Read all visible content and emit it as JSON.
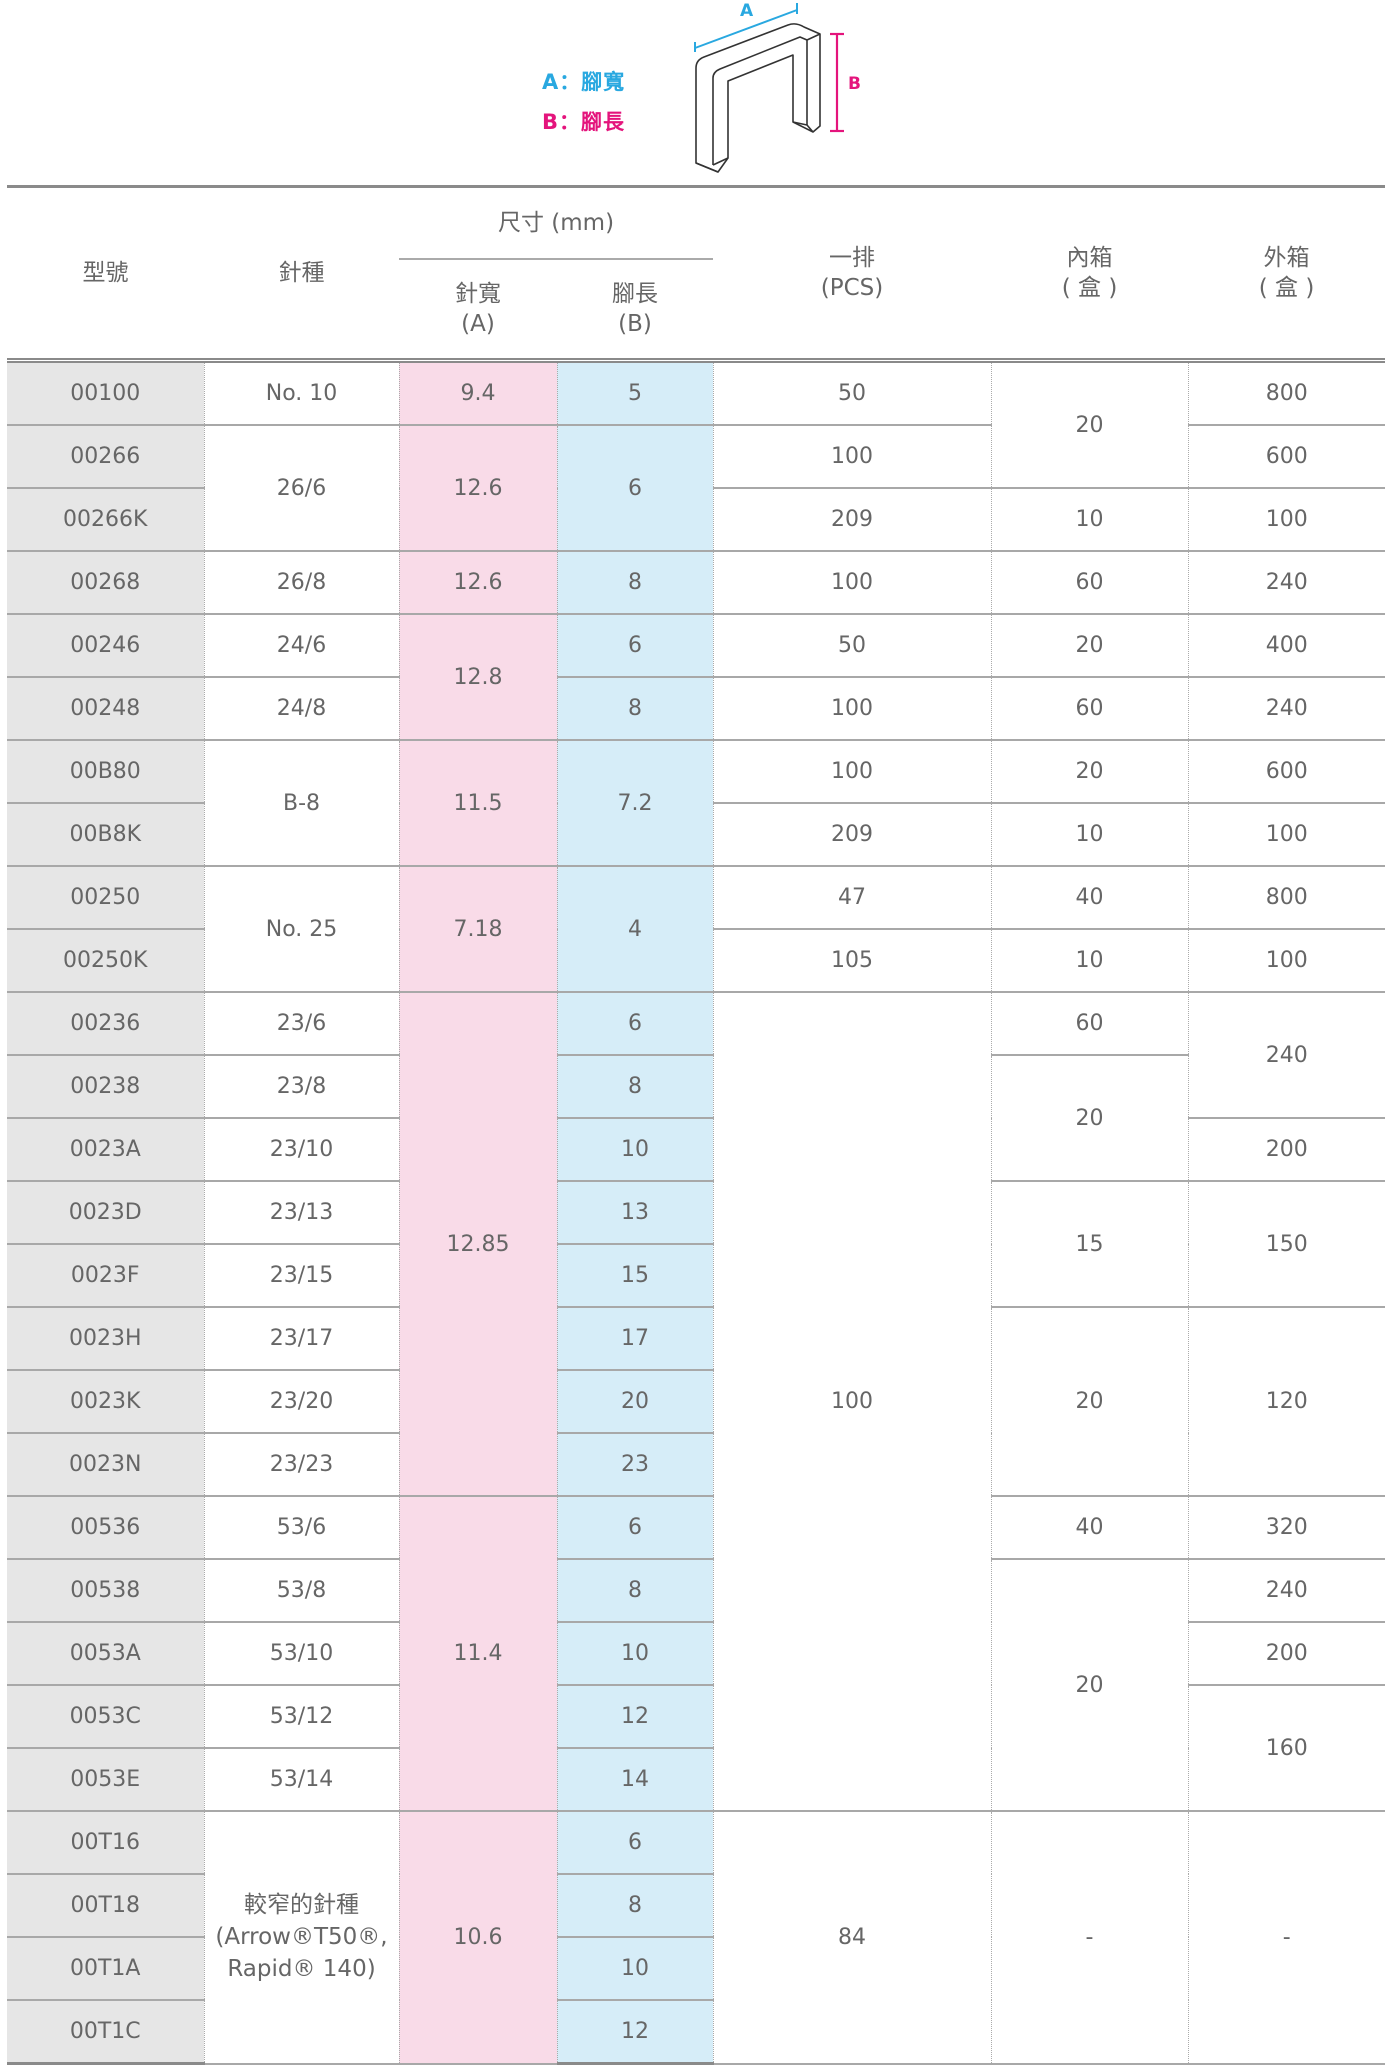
{
  "legend": {
    "a": "A：腳寬",
    "b": "B：腳長",
    "a_mark": "A",
    "b_mark": "B",
    "a_color": "#29a8e0",
    "b_color": "#e4147c"
  },
  "colors": {
    "width_column": "#f9dbe8",
    "leg_column": "#d6edf8",
    "model_column": "#e6e6e6"
  },
  "table": {
    "headers": {
      "model": "型號",
      "type": "針種",
      "size": "尺寸 (mm)",
      "width": "針寬",
      "width_unit": "(A)",
      "leg": "腳長",
      "leg_unit": "(B)",
      "row": "一排",
      "row_unit": "(PCS)",
      "inner": "內箱",
      "inner_unit": "( 盒 )",
      "outer": "外箱",
      "outer_unit": "( 盒 )"
    },
    "rows": [
      [
        {
          "c": "model",
          "v": "00100"
        },
        {
          "c": "type",
          "v": "No. 10"
        },
        {
          "c": "width",
          "v": "9.4"
        },
        {
          "c": "leg",
          "v": "5"
        },
        {
          "c": "pcs",
          "v": "50"
        },
        {
          "c": "inner",
          "v": "20",
          "s": 2
        },
        {
          "c": "outer",
          "v": "800"
        }
      ],
      [
        {
          "c": "model",
          "v": "00266"
        },
        {
          "c": "type",
          "v": "26/6",
          "s": 2
        },
        {
          "c": "width",
          "v": "12.6",
          "s": 2
        },
        {
          "c": "leg",
          "v": "6",
          "s": 2
        },
        {
          "c": "pcs",
          "v": "100"
        },
        {
          "c": "outer",
          "v": "600"
        }
      ],
      [
        {
          "c": "model",
          "v": "00266K"
        },
        {
          "c": "pcs",
          "v": "209"
        },
        {
          "c": "inner",
          "v": "10"
        },
        {
          "c": "outer",
          "v": "100"
        }
      ],
      [
        {
          "c": "model",
          "v": "00268"
        },
        {
          "c": "type",
          "v": "26/8"
        },
        {
          "c": "width",
          "v": "12.6"
        },
        {
          "c": "leg",
          "v": "8"
        },
        {
          "c": "pcs",
          "v": "100"
        },
        {
          "c": "inner",
          "v": "60"
        },
        {
          "c": "outer",
          "v": "240"
        }
      ],
      [
        {
          "c": "model",
          "v": "00246"
        },
        {
          "c": "type",
          "v": "24/6"
        },
        {
          "c": "width",
          "v": "12.8",
          "s": 2
        },
        {
          "c": "leg",
          "v": "6"
        },
        {
          "c": "pcs",
          "v": "50"
        },
        {
          "c": "inner",
          "v": "20"
        },
        {
          "c": "outer",
          "v": "400"
        }
      ],
      [
        {
          "c": "model",
          "v": "00248"
        },
        {
          "c": "type",
          "v": "24/8"
        },
        {
          "c": "leg",
          "v": "8"
        },
        {
          "c": "pcs",
          "v": "100"
        },
        {
          "c": "inner",
          "v": "60"
        },
        {
          "c": "outer",
          "v": "240"
        }
      ],
      [
        {
          "c": "model",
          "v": "00B80"
        },
        {
          "c": "type",
          "v": "B-8",
          "s": 2
        },
        {
          "c": "width",
          "v": "11.5",
          "s": 2
        },
        {
          "c": "leg",
          "v": "7.2",
          "s": 2
        },
        {
          "c": "pcs",
          "v": "100"
        },
        {
          "c": "inner",
          "v": "20"
        },
        {
          "c": "outer",
          "v": "600"
        }
      ],
      [
        {
          "c": "model",
          "v": "00B8K"
        },
        {
          "c": "pcs",
          "v": "209"
        },
        {
          "c": "inner",
          "v": "10"
        },
        {
          "c": "outer",
          "v": "100"
        }
      ],
      [
        {
          "c": "model",
          "v": "00250"
        },
        {
          "c": "type",
          "v": "No. 25",
          "s": 2
        },
        {
          "c": "width",
          "v": "7.18",
          "s": 2
        },
        {
          "c": "leg",
          "v": "4",
          "s": 2
        },
        {
          "c": "pcs",
          "v": "47"
        },
        {
          "c": "inner",
          "v": "40"
        },
        {
          "c": "outer",
          "v": "800"
        }
      ],
      [
        {
          "c": "model",
          "v": "00250K"
        },
        {
          "c": "pcs",
          "v": "105"
        },
        {
          "c": "inner",
          "v": "10"
        },
        {
          "c": "outer",
          "v": "100"
        }
      ],
      [
        {
          "c": "model",
          "v": "00236"
        },
        {
          "c": "type",
          "v": "23/6"
        },
        {
          "c": "width",
          "v": "12.85",
          "s": 8
        },
        {
          "c": "leg",
          "v": "6"
        },
        {
          "c": "pcs",
          "v": "100",
          "s": 13
        },
        {
          "c": "inner",
          "v": "60"
        },
        {
          "c": "outer",
          "v": "240",
          "s": 2
        }
      ],
      [
        {
          "c": "model",
          "v": "00238"
        },
        {
          "c": "type",
          "v": "23/8"
        },
        {
          "c": "leg",
          "v": "8"
        },
        {
          "c": "inner",
          "v": "20",
          "s": 2
        }
      ],
      [
        {
          "c": "model",
          "v": "0023A"
        },
        {
          "c": "type",
          "v": "23/10"
        },
        {
          "c": "leg",
          "v": "10"
        },
        {
          "c": "outer",
          "v": "200"
        }
      ],
      [
        {
          "c": "model",
          "v": "0023D"
        },
        {
          "c": "type",
          "v": "23/13"
        },
        {
          "c": "leg",
          "v": "13"
        },
        {
          "c": "inner",
          "v": "15",
          "s": 2
        },
        {
          "c": "outer",
          "v": "150",
          "s": 2
        }
      ],
      [
        {
          "c": "model",
          "v": "0023F"
        },
        {
          "c": "type",
          "v": "23/15"
        },
        {
          "c": "leg",
          "v": "15"
        }
      ],
      [
        {
          "c": "model",
          "v": "0023H"
        },
        {
          "c": "type",
          "v": "23/17"
        },
        {
          "c": "leg",
          "v": "17"
        },
        {
          "c": "inner",
          "v": "20",
          "s": 3
        },
        {
          "c": "outer",
          "v": "120",
          "s": 3
        }
      ],
      [
        {
          "c": "model",
          "v": "0023K"
        },
        {
          "c": "type",
          "v": "23/20"
        },
        {
          "c": "leg",
          "v": "20"
        }
      ],
      [
        {
          "c": "model",
          "v": "0023N"
        },
        {
          "c": "type",
          "v": "23/23"
        },
        {
          "c": "leg",
          "v": "23"
        }
      ],
      [
        {
          "c": "model",
          "v": "00536"
        },
        {
          "c": "type",
          "v": "53/6"
        },
        {
          "c": "width",
          "v": "11.4",
          "s": 5
        },
        {
          "c": "leg",
          "v": "6"
        },
        {
          "c": "inner",
          "v": "40"
        },
        {
          "c": "outer",
          "v": "320"
        }
      ],
      [
        {
          "c": "model",
          "v": "00538"
        },
        {
          "c": "type",
          "v": "53/8"
        },
        {
          "c": "leg",
          "v": "8"
        },
        {
          "c": "inner",
          "v": "20",
          "s": 4
        },
        {
          "c": "outer",
          "v": "240"
        }
      ],
      [
        {
          "c": "model",
          "v": "0053A"
        },
        {
          "c": "type",
          "v": "53/10"
        },
        {
          "c": "leg",
          "v": "10"
        },
        {
          "c": "outer",
          "v": "200"
        }
      ],
      [
        {
          "c": "model",
          "v": "0053C"
        },
        {
          "c": "type",
          "v": "53/12"
        },
        {
          "c": "leg",
          "v": "12"
        },
        {
          "c": "outer",
          "v": "160",
          "s": 2
        }
      ],
      [
        {
          "c": "model",
          "v": "0053E"
        },
        {
          "c": "type",
          "v": "53/14"
        },
        {
          "c": "leg",
          "v": "14"
        }
      ],
      [
        {
          "c": "model",
          "v": "00T16"
        },
        {
          "c": "type",
          "v": "較窄的針種\n(Arrow®T50®,\nRapid® 140)",
          "s": 4
        },
        {
          "c": "width",
          "v": "10.6",
          "s": 4
        },
        {
          "c": "leg",
          "v": "6"
        },
        {
          "c": "pcs",
          "v": "84",
          "s": 4
        },
        {
          "c": "inner",
          "v": "-",
          "s": 4
        },
        {
          "c": "outer",
          "v": "-",
          "s": 4
        }
      ],
      [
        {
          "c": "model",
          "v": "00T18"
        },
        {
          "c": "leg",
          "v": "8"
        }
      ],
      [
        {
          "c": "model",
          "v": "00T1A"
        },
        {
          "c": "leg",
          "v": "10"
        }
      ],
      [
        {
          "c": "model",
          "v": "00T1C"
        },
        {
          "c": "leg",
          "v": "12"
        }
      ]
    ]
  }
}
